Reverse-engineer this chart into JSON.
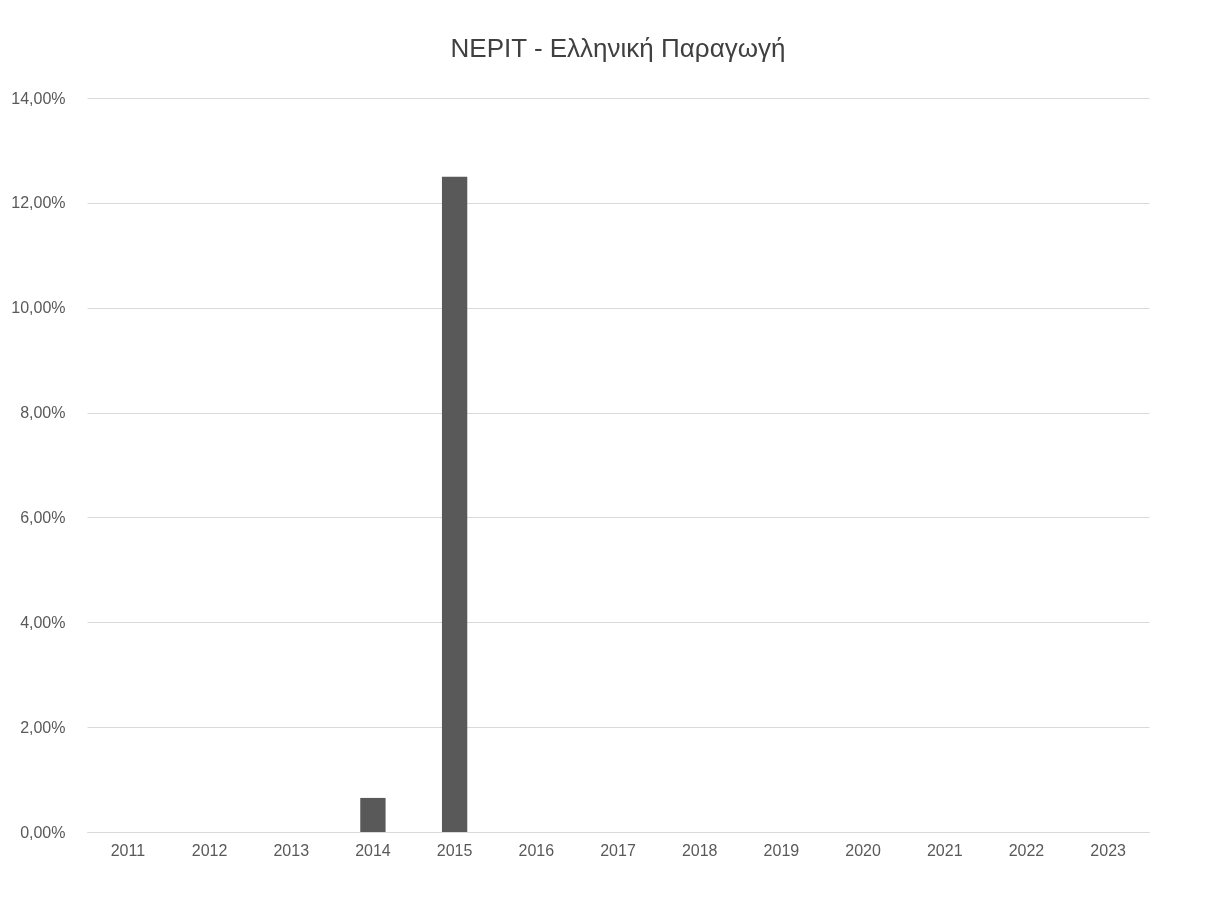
{
  "chart_data": {
    "type": "bar",
    "title": "NEPIT - Ελληνική Παραγωγή",
    "categories": [
      "2011",
      "2012",
      "2013",
      "2014",
      "2015",
      "2016",
      "2017",
      "2018",
      "2019",
      "2020",
      "2021",
      "2022",
      "2023"
    ],
    "values": [
      0,
      0,
      0,
      0.65,
      12.5,
      0,
      0,
      0,
      0,
      0,
      0,
      0,
      0
    ],
    "color": "#595959",
    "ylim": [
      0,
      14
    ],
    "yticks": [
      {
        "value": 0,
        "label": "0,00%"
      },
      {
        "value": 2,
        "label": "2,00%"
      },
      {
        "value": 4,
        "label": "4,00%"
      },
      {
        "value": 6,
        "label": "6,00%"
      },
      {
        "value": 8,
        "label": "8,00%"
      },
      {
        "value": 10,
        "label": "10,00%"
      },
      {
        "value": 12,
        "label": "12,00%"
      },
      {
        "value": 14,
        "label": "14,00%"
      }
    ],
    "grid": "y"
  }
}
